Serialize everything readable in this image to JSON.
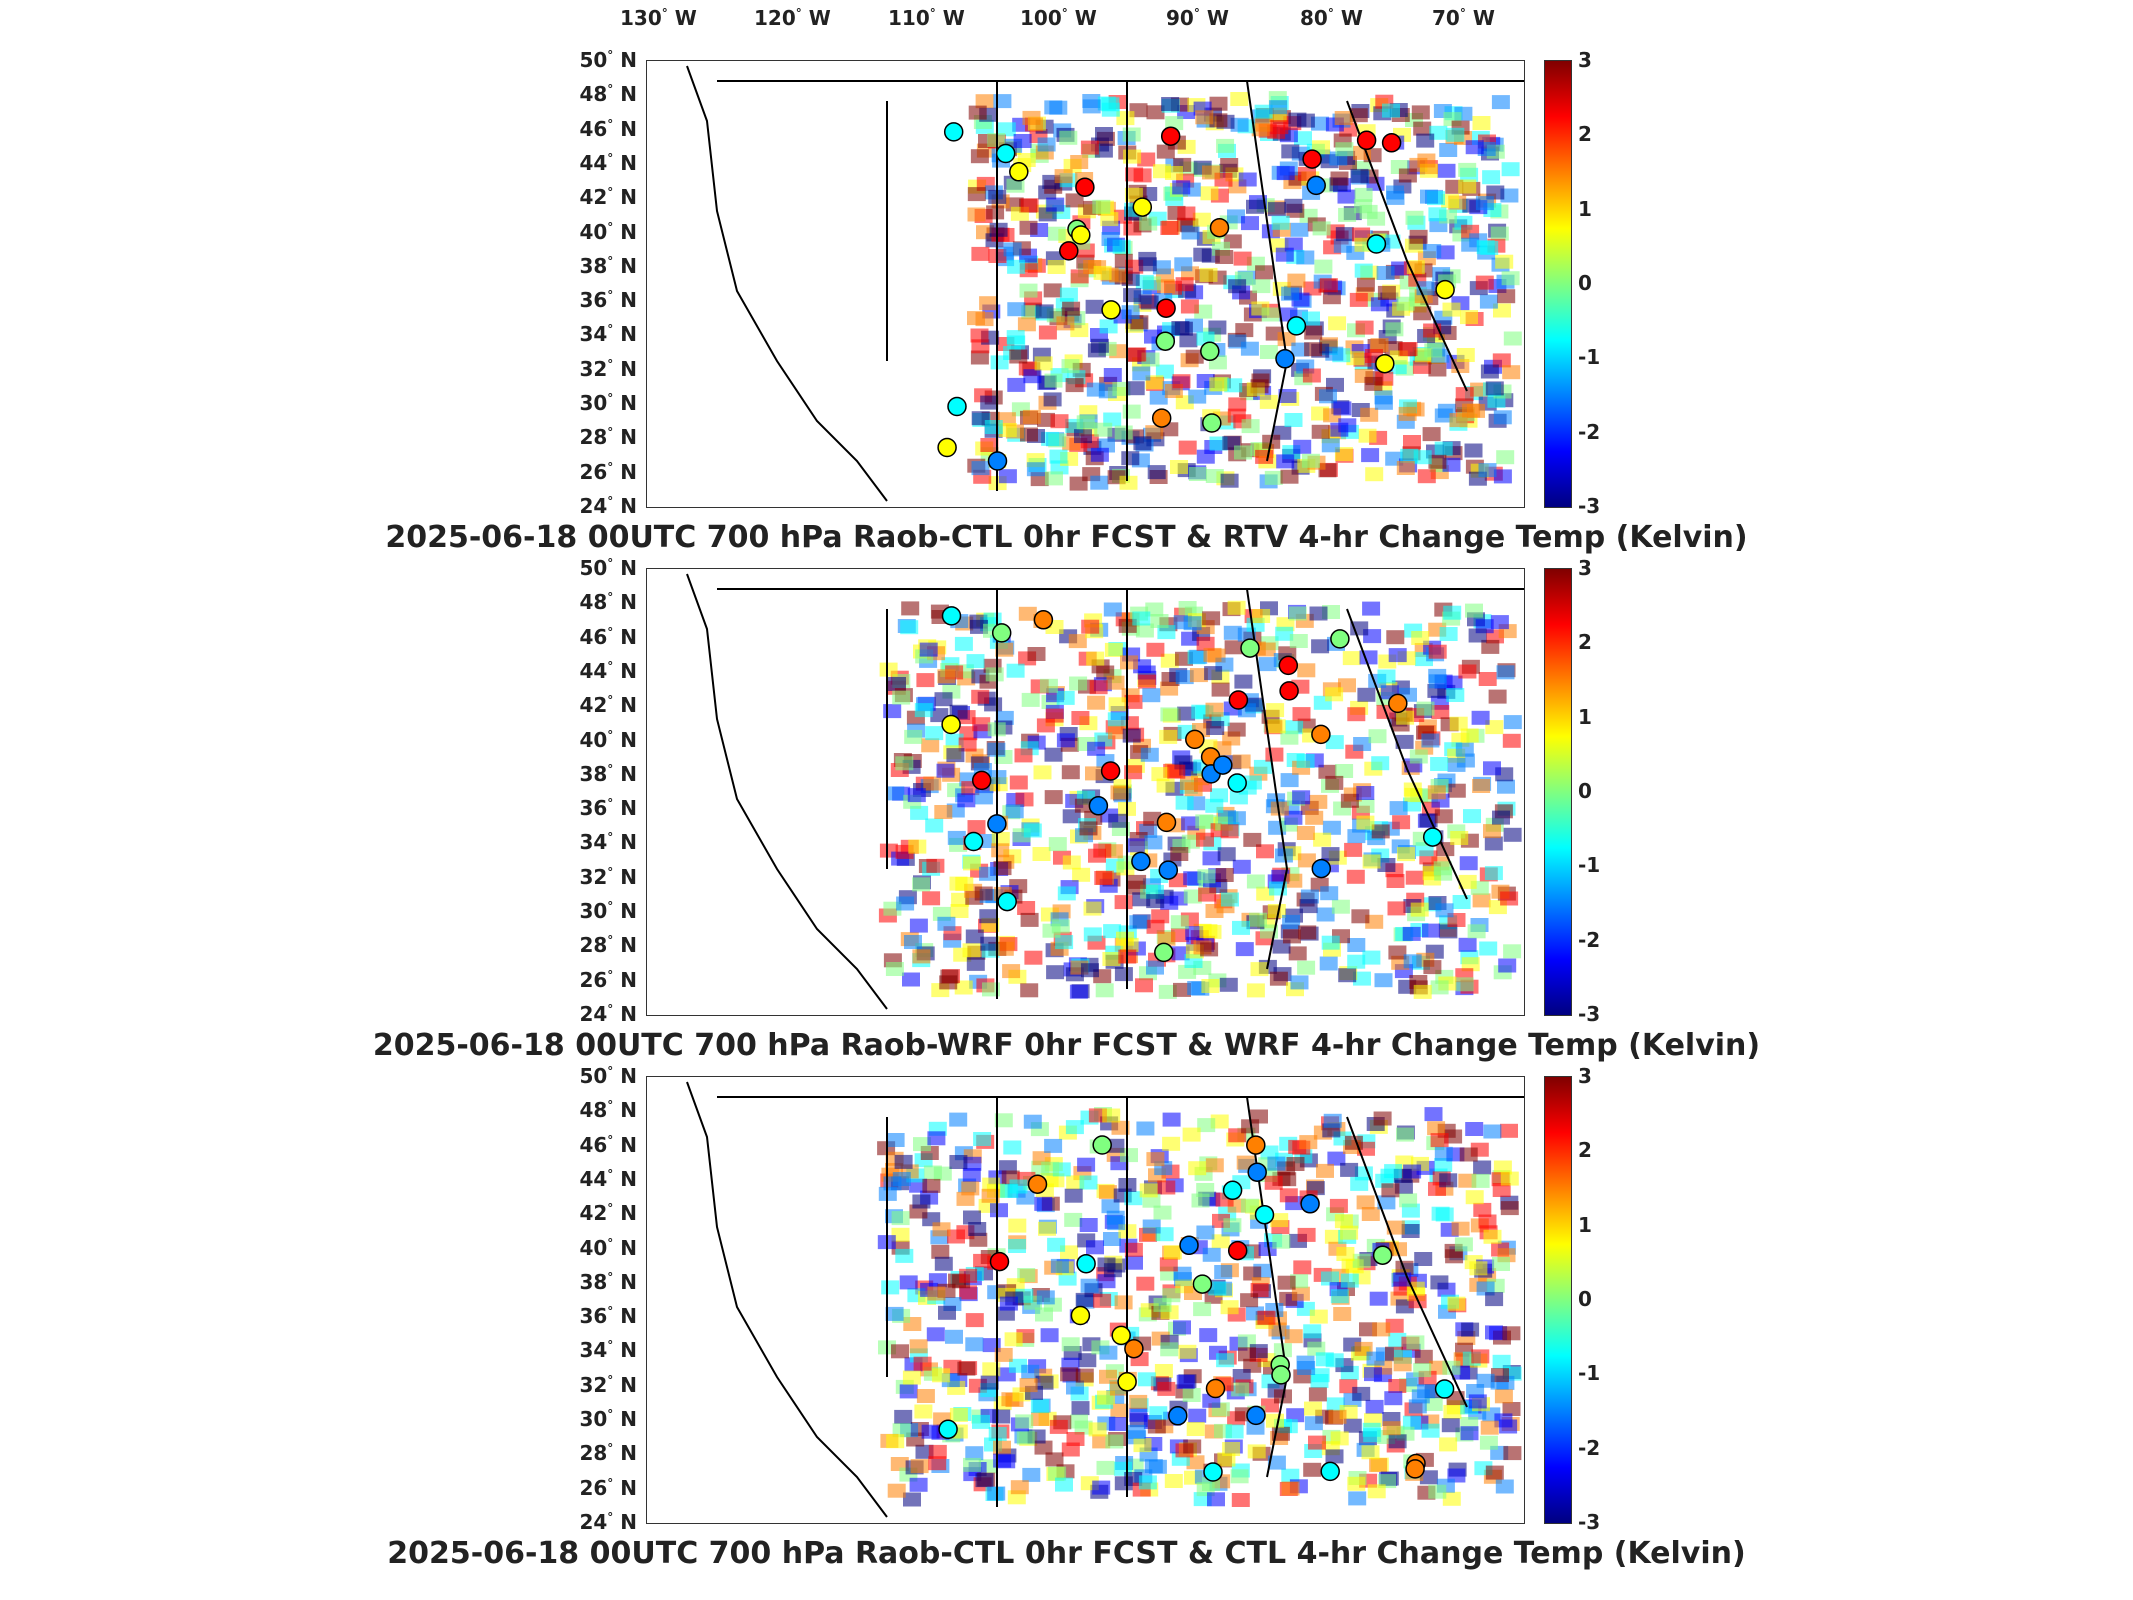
{
  "longitude_labels": [
    {
      "deg": "130",
      "hem": "W"
    },
    {
      "deg": "120",
      "hem": "W"
    },
    {
      "deg": "110",
      "hem": "W"
    },
    {
      "deg": "100",
      "hem": "W"
    },
    {
      "deg": "90",
      "hem": "W"
    },
    {
      "deg": "80",
      "hem": "W"
    },
    {
      "deg": "70",
      "hem": "W"
    }
  ],
  "latitude_labels": [
    {
      "deg": "50",
      "hem": "N"
    },
    {
      "deg": "48",
      "hem": "N"
    },
    {
      "deg": "46",
      "hem": "N"
    },
    {
      "deg": "44",
      "hem": "N"
    },
    {
      "deg": "42",
      "hem": "N"
    },
    {
      "deg": "40",
      "hem": "N"
    },
    {
      "deg": "38",
      "hem": "N"
    },
    {
      "deg": "36",
      "hem": "N"
    },
    {
      "deg": "34",
      "hem": "N"
    },
    {
      "deg": "32",
      "hem": "N"
    },
    {
      "deg": "30",
      "hem": "N"
    },
    {
      "deg": "28",
      "hem": "N"
    },
    {
      "deg": "26",
      "hem": "N"
    },
    {
      "deg": "24",
      "hem": "N"
    }
  ],
  "colorbar": {
    "ticks": [
      "3",
      "2",
      "1",
      "0",
      "-1",
      "-2",
      "-3"
    ],
    "range": [
      -3,
      3
    ],
    "colormap": "jet"
  },
  "panels": [
    {
      "title": "2025-06-18 00UTC 700 hPa Raob-CTL 0hr FCST & RTV 4-hr Change Temp (Kelvin)"
    },
    {
      "title": "2025-06-18 00UTC 700 hPa Raob-WRF 0hr FCST & WRF 4-hr Change Temp (Kelvin)"
    },
    {
      "title": "2025-06-18 00UTC 700 hPa Raob-CTL 0hr FCST & CTL 4-hr Change Temp (Kelvin)"
    }
  ],
  "colors": {
    "frame": "#333333",
    "station_outline": "#000000"
  }
}
